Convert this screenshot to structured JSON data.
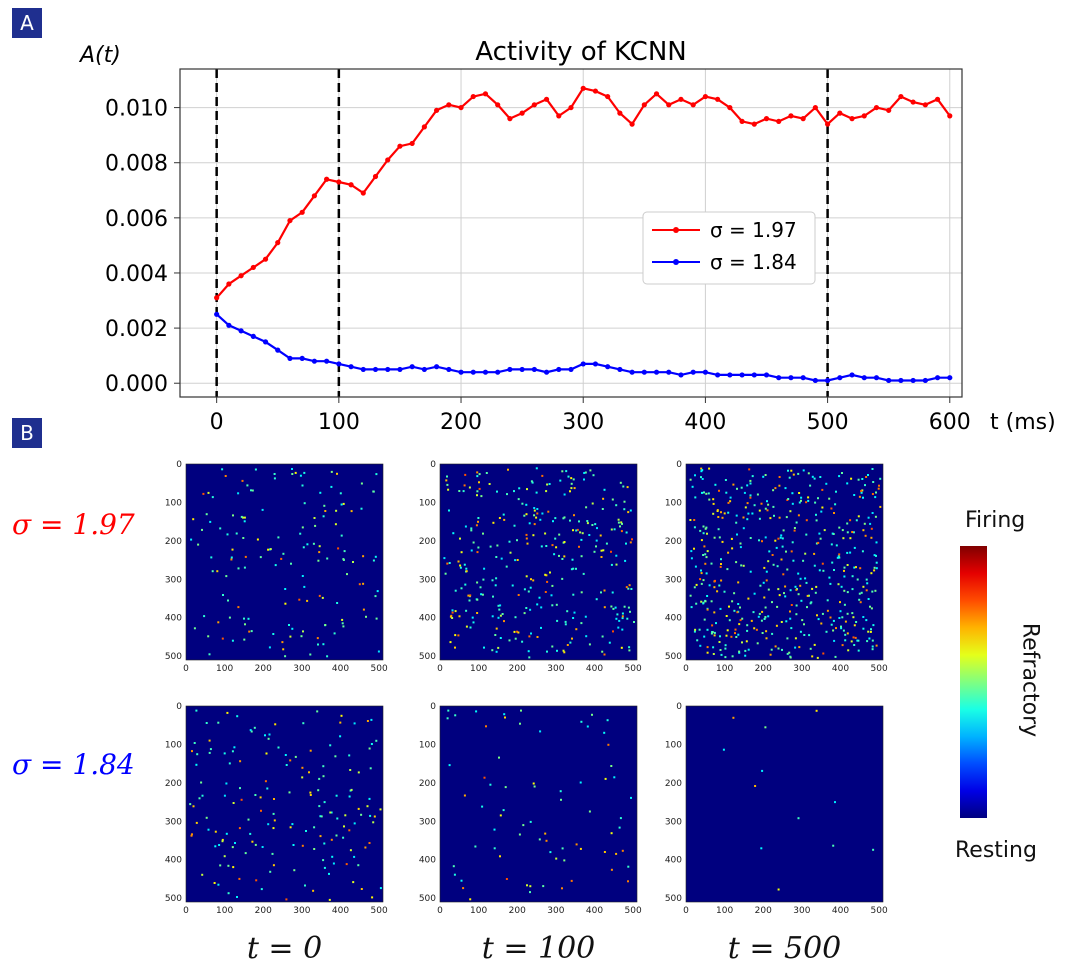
{
  "panels": {
    "a": "A",
    "b": "B"
  },
  "chart_data": [
    {
      "type": "line",
      "title": "Activity of KCNN",
      "ylabel": "A(t)",
      "xlabel": "t (ms)",
      "xlim": [
        -30,
        610
      ],
      "ylim": [
        -0.0005,
        0.0114
      ],
      "xticks": [
        0,
        100,
        200,
        300,
        400,
        500,
        600
      ],
      "yticks": [
        "0.000",
        "0.002",
        "0.004",
        "0.006",
        "0.008",
        "0.010"
      ],
      "grid": true,
      "legend": "center-right",
      "vlines": [
        0,
        100,
        500
      ],
      "x": [
        0,
        10,
        20,
        30,
        40,
        50,
        60,
        70,
        80,
        90,
        100,
        110,
        120,
        130,
        140,
        150,
        160,
        170,
        180,
        190,
        200,
        210,
        220,
        230,
        240,
        250,
        260,
        270,
        280,
        290,
        300,
        310,
        320,
        330,
        340,
        350,
        360,
        370,
        380,
        390,
        400,
        410,
        420,
        430,
        440,
        450,
        460,
        470,
        480,
        490,
        500,
        510,
        520,
        530,
        540,
        550,
        560,
        570,
        580,
        590,
        600
      ],
      "series": [
        {
          "name": "σ = 1.97",
          "color": "#ff0000",
          "values": [
            0.0031,
            0.0036,
            0.0039,
            0.0042,
            0.0045,
            0.0051,
            0.0059,
            0.0062,
            0.0068,
            0.0074,
            0.0073,
            0.0072,
            0.0069,
            0.0075,
            0.0081,
            0.0086,
            0.0087,
            0.0093,
            0.0099,
            0.0101,
            0.01,
            0.0104,
            0.0105,
            0.0101,
            0.0096,
            0.0098,
            0.0101,
            0.0103,
            0.0097,
            0.01,
            0.0107,
            0.0106,
            0.0104,
            0.0098,
            0.0094,
            0.0101,
            0.0105,
            0.0101,
            0.0103,
            0.0101,
            0.0104,
            0.0103,
            0.01,
            0.0095,
            0.0094,
            0.0096,
            0.0095,
            0.0097,
            0.0096,
            0.01,
            0.0094,
            0.0098,
            0.0096,
            0.0097,
            0.01,
            0.0099,
            0.0104,
            0.0102,
            0.0101,
            0.0103,
            0.0097
          ]
        },
        {
          "name": "σ = 1.84",
          "color": "#0000ff",
          "values": [
            0.0025,
            0.0021,
            0.0019,
            0.0017,
            0.0015,
            0.0012,
            0.0009,
            0.0009,
            0.0008,
            0.0008,
            0.0007,
            0.0006,
            0.0005,
            0.0005,
            0.0005,
            0.0005,
            0.0006,
            0.0005,
            0.0006,
            0.0005,
            0.0004,
            0.0004,
            0.0004,
            0.0004,
            0.0005,
            0.0005,
            0.0005,
            0.0004,
            0.0005,
            0.0005,
            0.0007,
            0.0007,
            0.0006,
            0.0005,
            0.0004,
            0.0004,
            0.0004,
            0.0004,
            0.0003,
            0.0004,
            0.0004,
            0.0003,
            0.0003,
            0.0003,
            0.0003,
            0.0003,
            0.0002,
            0.0002,
            0.0002,
            0.0001,
            0.0001,
            0.0002,
            0.0003,
            0.0002,
            0.0002,
            0.0001,
            0.0001,
            0.0001,
            0.0001,
            0.0002,
            0.0002
          ]
        }
      ]
    },
    {
      "type": "heatmap",
      "rows": [
        "σ = 1.97",
        "σ = 1.84"
      ],
      "columns": [
        "t = 0",
        "t = 100",
        "t = 500"
      ],
      "axis_ticks": [
        "0",
        "100",
        "200",
        "300",
        "400",
        "500"
      ],
      "colormap": "jet",
      "colorbar": {
        "top": "Firing",
        "middle": "Refractory",
        "bottom": "Resting"
      },
      "activity_level": [
        [
          0.25,
          0.55,
          0.85
        ],
        [
          0.28,
          0.12,
          0.02
        ]
      ]
    }
  ]
}
